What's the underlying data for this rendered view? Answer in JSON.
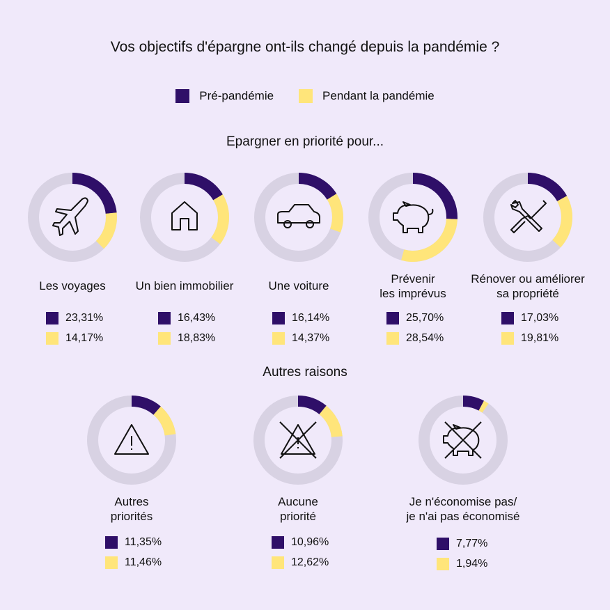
{
  "title": "Vos objectifs d'épargne ont-ils changé depuis la pandémie ?",
  "legend": {
    "pre": "Pré-pandémie",
    "during": "Pendant la pandémie"
  },
  "colors": {
    "pre": "#2f0f68",
    "during": "#ffe57a",
    "track": "#d8d2e3",
    "background": "#f0e9fa"
  },
  "sections": {
    "priority": "Epargner en priorité pour...",
    "other": "Autres raisons"
  },
  "chart_data": {
    "type": "donut",
    "series": [
      {
        "name": "Pré-pandémie"
      },
      {
        "name": "Pendant la pandémie"
      }
    ],
    "items": [
      {
        "label": [
          "Les voyages"
        ],
        "icon": "airplane-icon",
        "pre": 23.31,
        "during": 14.17,
        "pre_text": "23,31%",
        "during_text": "14,17%"
      },
      {
        "label": [
          "Un bien immobilier"
        ],
        "icon": "house-icon",
        "pre": 16.43,
        "during": 18.83,
        "pre_text": "16,43%",
        "during_text": "18,83%"
      },
      {
        "label": [
          "Une voiture"
        ],
        "icon": "car-icon",
        "pre": 16.14,
        "during": 14.37,
        "pre_text": "16,14%",
        "during_text": "14,37%"
      },
      {
        "label": [
          "Prévenir",
          "les imprévus"
        ],
        "icon": "piggy-bank-icon",
        "pre": 25.7,
        "during": 28.54,
        "pre_text": "25,70%",
        "during_text": "28,54%"
      },
      {
        "label": [
          "Rénover ou améliorer",
          "sa propriété"
        ],
        "icon": "tools-icon",
        "pre": 17.03,
        "during": 19.81,
        "pre_text": "17,03%",
        "during_text": "19,81%"
      },
      {
        "label": [
          "Autres",
          "priorités"
        ],
        "icon": "warning-icon",
        "pre": 11.35,
        "during": 11.46,
        "pre_text": "11,35%",
        "during_text": "11,46%"
      },
      {
        "label": [
          "Aucune",
          "priorité"
        ],
        "icon": "crossed-warning-icon",
        "pre": 10.96,
        "during": 12.62,
        "pre_text": "10,96%",
        "during_text": "12,62%"
      },
      {
        "label": [
          "Je n'économise pas/",
          "je n'ai pas économisé"
        ],
        "icon": "crossed-piggy-bank-icon",
        "pre": 7.77,
        "during": 1.94,
        "pre_text": "7,77%",
        "during_text": "1,94%"
      }
    ]
  }
}
